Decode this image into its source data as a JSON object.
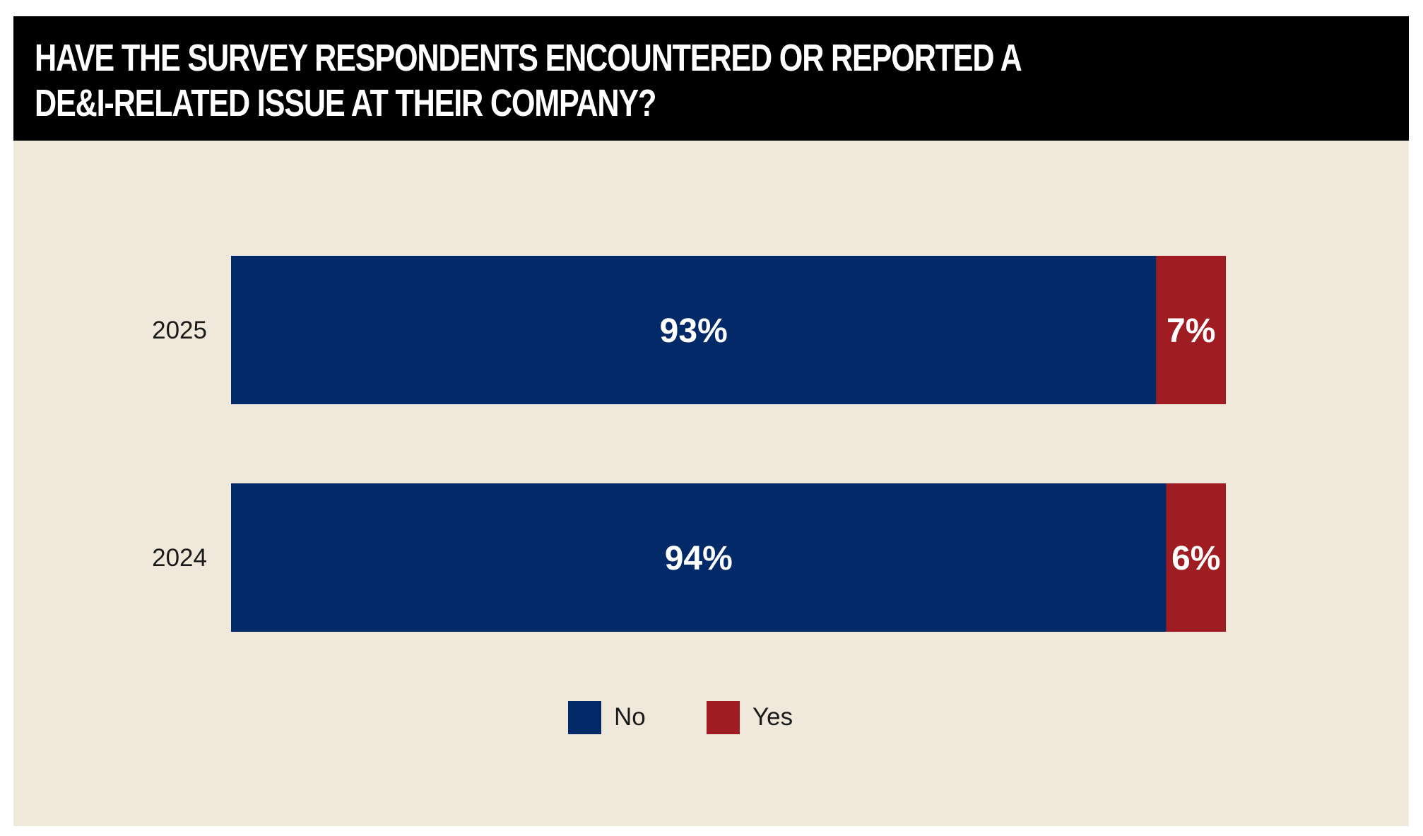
{
  "chart_data": {
    "type": "bar",
    "orientation": "horizontal",
    "stacked": true,
    "title": "HAVE THE SURVEY RESPONDENTS ENCOUNTERED OR REPORTED A DE&I-RELATED ISSUE AT THEIR COMPANY?",
    "title_lines": [
      "HAVE THE SURVEY RESPONDENTS ENCOUNTERED OR REPORTED A",
      "DE&I-RELATED ISSUE AT THEIR COMPANY?"
    ],
    "categories": [
      "2025",
      "2024"
    ],
    "series": [
      {
        "name": "No",
        "color": "#022a68",
        "values": [
          93,
          94
        ],
        "labels": [
          "93%",
          "94%"
        ]
      },
      {
        "name": "Yes",
        "color": "#9e1c22",
        "values": [
          7,
          6
        ],
        "labels": [
          "7%",
          "6%"
        ]
      }
    ],
    "xlim": [
      0,
      100
    ],
    "xlabel": "",
    "ylabel": "",
    "grid": false,
    "legend_position": "bottom-center"
  },
  "colors": {
    "header_bg": "#000000",
    "panel_bg": "#f0e8da",
    "no": "#022a68",
    "yes": "#9e1c22"
  }
}
